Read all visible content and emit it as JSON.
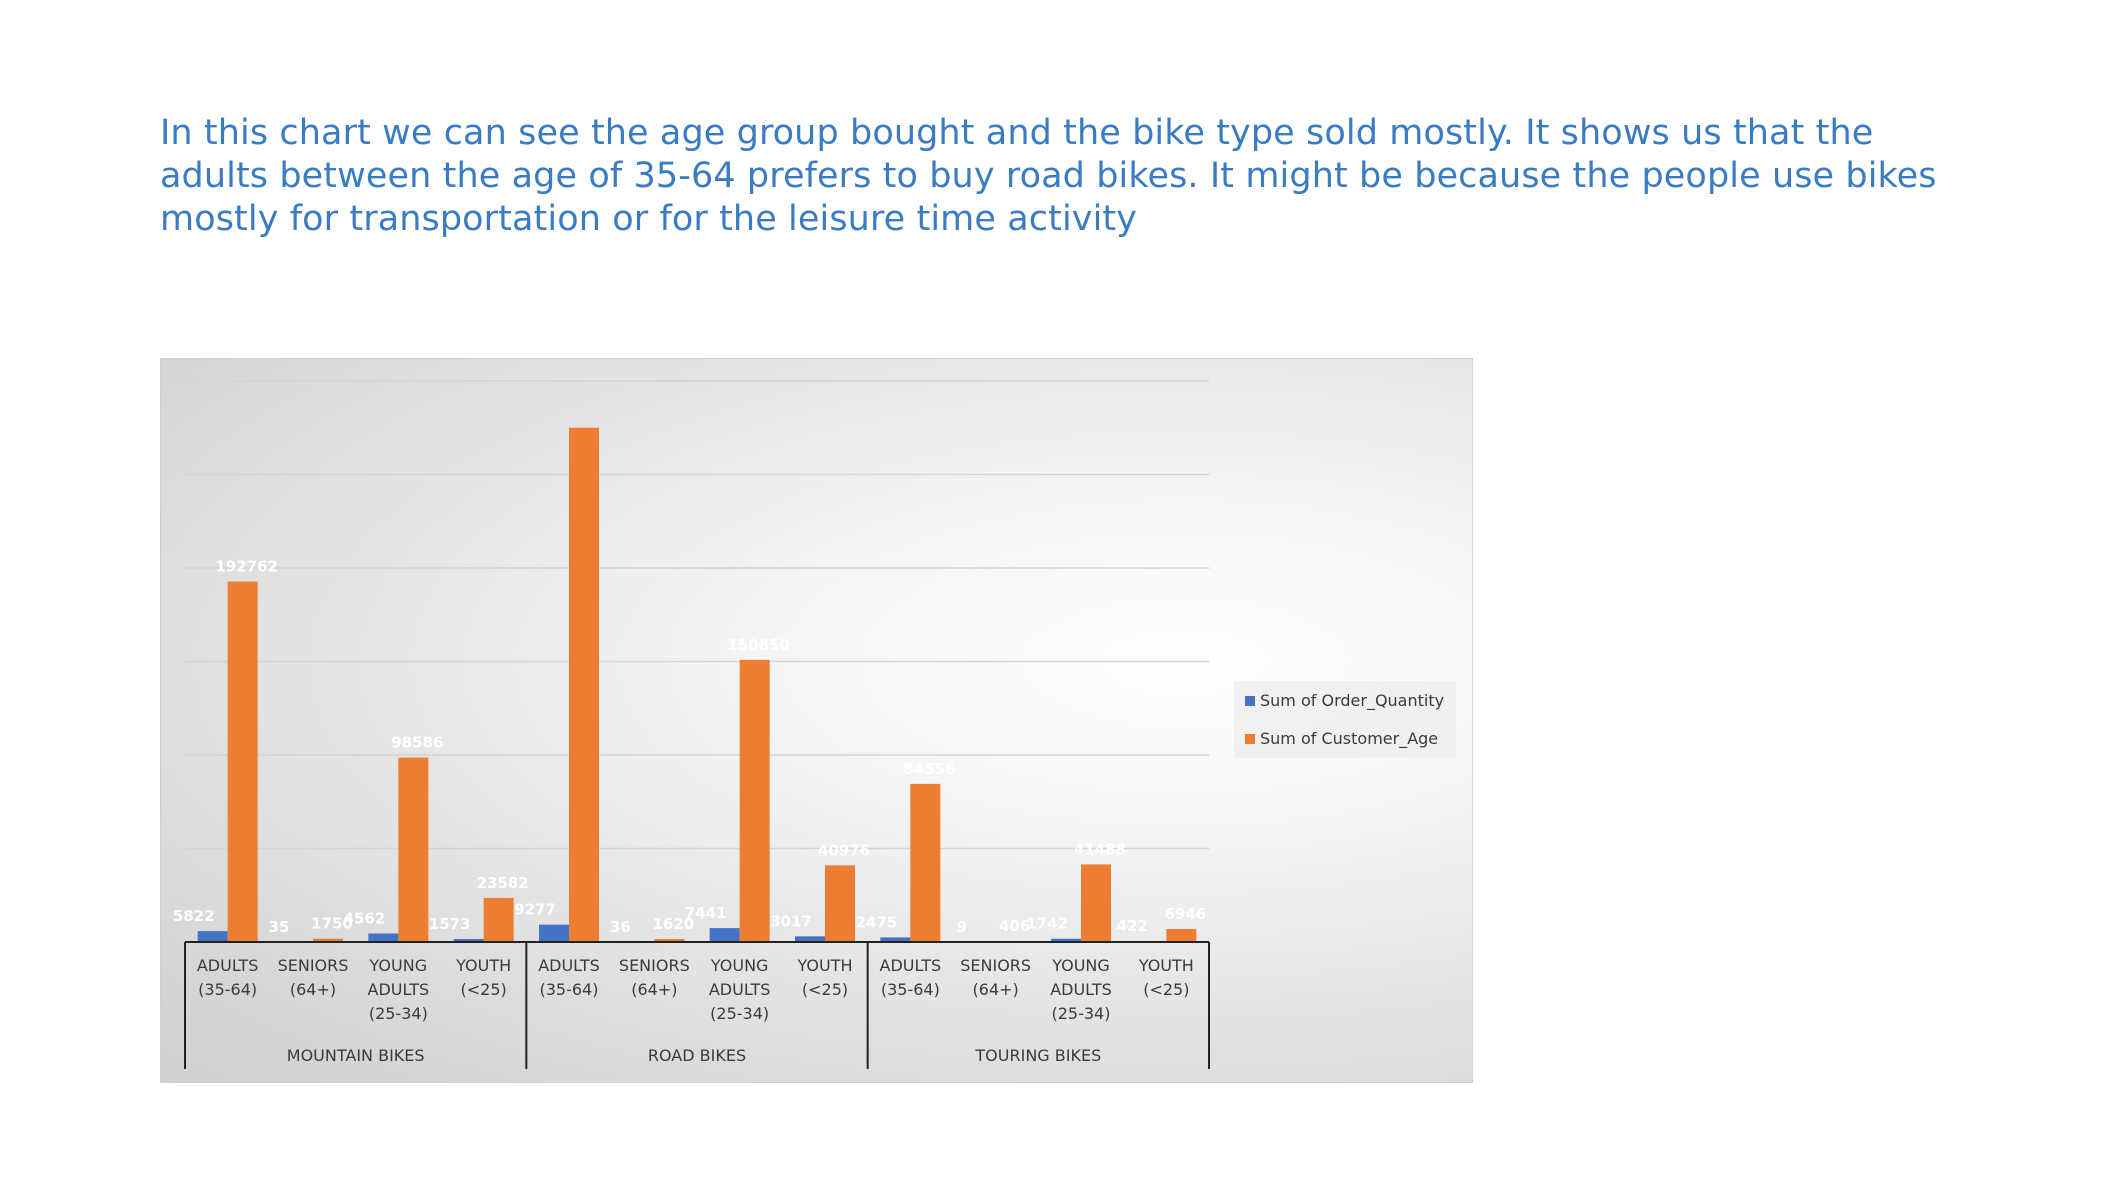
{
  "caption": "In this chart we can see the age group bought and the bike type sold mostly. It shows us that the adults between the age of 35-64 prefers to buy road bikes. It might be because the people use bikes mostly for transportation or for the leisure time activity",
  "chart_data": {
    "type": "bar",
    "title": "",
    "groups": [
      {
        "name": "MOUNTAIN BIKES",
        "categories": [
          [
            "ADULTS",
            "(35-64)"
          ],
          [
            "SENIORS",
            "(64+)"
          ],
          [
            "YOUNG",
            "ADULTS",
            "(25-34)"
          ],
          [
            "YOUTH",
            "(<25)"
          ]
        ]
      },
      {
        "name": "ROAD BIKES",
        "categories": [
          [
            "ADULTS",
            "(35-64)"
          ],
          [
            "SENIORS",
            "(64+)"
          ],
          [
            "YOUNG",
            "ADULTS",
            "(25-34)"
          ],
          [
            "YOUTH",
            "(<25)"
          ]
        ]
      },
      {
        "name": "TOURING BIKES",
        "categories": [
          [
            "ADULTS",
            "(35-64)"
          ],
          [
            "SENIORS",
            "(64+)"
          ],
          [
            "YOUNG",
            "ADULTS",
            "(25-34)"
          ],
          [
            "YOUTH",
            "(<25)"
          ]
        ]
      }
    ],
    "series": [
      {
        "name": "Sum of Order_Quantity",
        "color": "#4472c4",
        "values": [
          5822,
          35,
          4562,
          1573,
          9277,
          36,
          7441,
          3017,
          2475,
          9,
          1742,
          422
        ],
        "labels": [
          "5822",
          "35",
          "4562",
          "1573",
          "9277",
          "36",
          "7441",
          "3017",
          "2475",
          "9",
          "1742",
          "422"
        ]
      },
      {
        "name": "Sum of Customer_Age",
        "color": "#ed7d31",
        "values": [
          192762,
          1750,
          98586,
          23582,
          275000,
          1620,
          150850,
          40976,
          84556,
          406,
          41488,
          6946
        ],
        "labels": [
          "192762",
          "1750",
          "98586",
          "23582",
          "",
          "1620",
          "150850",
          "40976",
          "84556",
          "406",
          "41488",
          "6946"
        ]
      }
    ],
    "ylim": [
      0,
      300000
    ],
    "gridlines": true,
    "legend_position": "right",
    "label_color": "#ffffff"
  }
}
